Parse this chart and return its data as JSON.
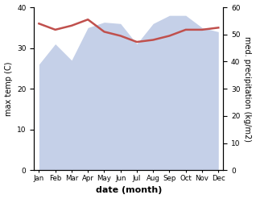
{
  "months": [
    "Jan",
    "Feb",
    "Mar",
    "Apr",
    "May",
    "Jun",
    "Jul",
    "Aug",
    "Sep",
    "Oct",
    "Nov",
    "Dec"
  ],
  "month_indices": [
    0,
    1,
    2,
    3,
    4,
    5,
    6,
    7,
    8,
    9,
    10,
    11
  ],
  "max_temp": [
    36.0,
    34.5,
    35.5,
    37.0,
    34.0,
    33.0,
    31.5,
    32.0,
    33.0,
    34.5,
    34.5,
    35.0
  ],
  "precipitation": [
    39.0,
    46.5,
    40.5,
    52.5,
    54.5,
    54.0,
    46.5,
    54.0,
    57.0,
    57.0,
    52.5,
    51.0
  ],
  "temp_color": "#c0504d",
  "precip_fill_color": "#c5d0e8",
  "temp_ylim": [
    0,
    40
  ],
  "precip_ylim": [
    0,
    60
  ],
  "temp_yticks": [
    0,
    10,
    20,
    30,
    40
  ],
  "precip_yticks": [
    0,
    10,
    20,
    30,
    40,
    50,
    60
  ],
  "xlabel": "date (month)",
  "ylabel_left": "max temp (C)",
  "ylabel_right": "med. precipitation (kg/m2)",
  "background_color": "#ffffff"
}
